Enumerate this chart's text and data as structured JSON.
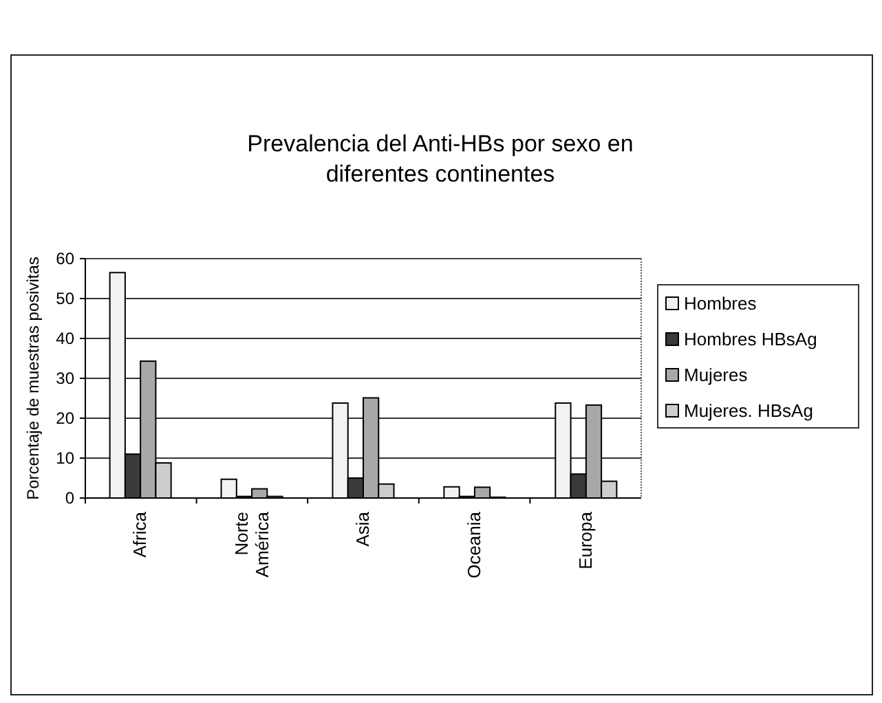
{
  "chart_data": {
    "type": "bar",
    "title": "Prevalencia del Anti-HBs por sexo en diferentes continentes",
    "ylabel": "Porcentaje de muestras posivitas",
    "categories": [
      "Africa",
      "Norte América",
      "Asia",
      "Oceania",
      "Europa"
    ],
    "series": [
      {
        "name": "Hombres",
        "color": "#f2f2f2",
        "values": [
          56.5,
          4.7,
          23.8,
          2.8,
          23.8
        ]
      },
      {
        "name": "Hombres HBsAg",
        "color": "#3a3a3a",
        "values": [
          11,
          0.4,
          5,
          0.4,
          6
        ]
      },
      {
        "name": "Mujeres",
        "color": "#a8a8a8",
        "values": [
          34.3,
          2.3,
          25.1,
          2.7,
          23.3
        ]
      },
      {
        "name": "Mujeres. HBsAg",
        "color": "#cdcdcd",
        "values": [
          8.8,
          0.4,
          3.5,
          0.2,
          4.2
        ]
      }
    ],
    "ylim": [
      0,
      60
    ],
    "yticks": [
      0,
      10,
      20,
      30,
      40,
      50,
      60
    ],
    "grid": "y",
    "legend": "right"
  }
}
